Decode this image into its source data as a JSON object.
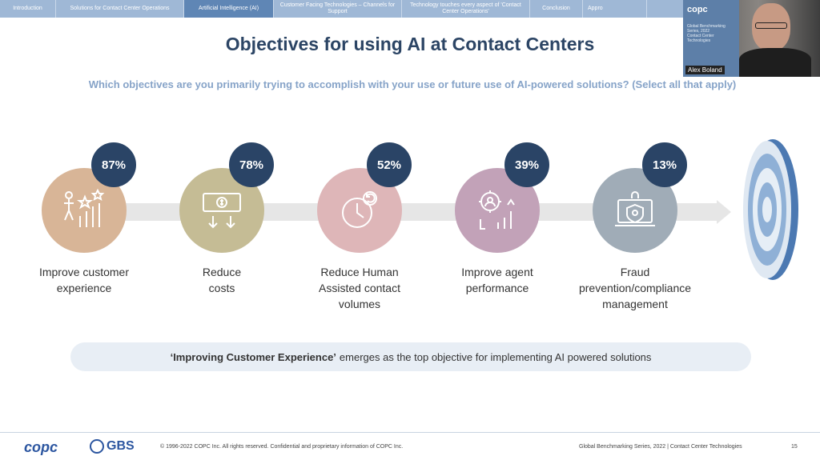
{
  "nav": {
    "tabs": [
      {
        "label": "Introduction",
        "active": false
      },
      {
        "label": "Solutions for Contact Center Operations",
        "active": false
      },
      {
        "label": "Artificial Intelligence (AI)",
        "active": true
      },
      {
        "label": "Customer Facing Technologies – Channels for Support",
        "active": false
      },
      {
        "label": "Technology touches every aspect of 'Contact Center Operations'",
        "active": false
      },
      {
        "label": "Conclusion",
        "active": false
      },
      {
        "label": "Appro",
        "active": false
      }
    ]
  },
  "slide": {
    "title": "Objectives for using AI at Contact Centers",
    "question": "Which objectives are you primarily trying to accomplish with your use or future use of AI-powered solutions? (Select all that apply)",
    "objectives": [
      {
        "percent": "87%",
        "label": "Improve customer\nexperience",
        "icon": "growth-chart-stars-icon",
        "color": "#d8b597"
      },
      {
        "percent": "78%",
        "label": "Reduce\ncosts",
        "icon": "dollar-bill-icon",
        "color": "#c5bc95"
      },
      {
        "percent": "52%",
        "label": "Reduce Human\nAssisted contact\nvolumes",
        "icon": "clock-refresh-icon",
        "color": "#deb6b8"
      },
      {
        "percent": "39%",
        "label": "Improve agent\nperformance",
        "icon": "gear-person-chart-icon",
        "color": "#c2a2b8"
      },
      {
        "percent": "13%",
        "label": "Fraud\nprevention/compliance\nmanagement",
        "icon": "laptop-shield-lock-icon",
        "color": "#a0acb7"
      }
    ],
    "callout_bold": "‘Improving Customer Experience’",
    "callout_text": "emerges as the top objective for implementing AI powered solutions"
  },
  "video": {
    "speaker_name": "Alex Boland",
    "overlay_brand": "copc",
    "overlay_lines": [
      "Global Benchmarking",
      "Series, 2022",
      "Contact Center",
      "Technologies"
    ]
  },
  "footer": {
    "copyright": "© 1996-2022 COPC Inc. All rights reserved. Confidential and proprietary information of COPC Inc.",
    "series": "Global Benchmarking Series, 2022  |  Contact Center Technologies",
    "page_number": "15",
    "logo_copc": "copc",
    "logo_gbs": "GBS"
  }
}
